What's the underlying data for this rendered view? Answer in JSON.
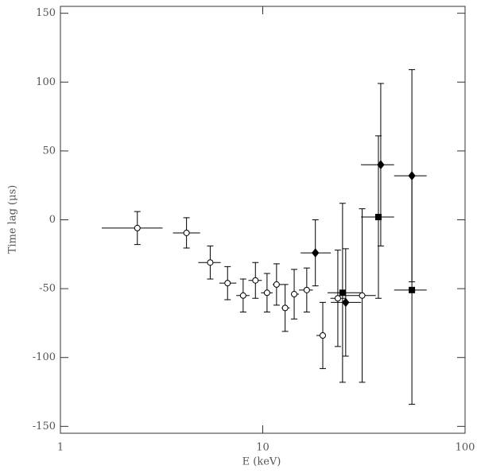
{
  "chart_data": {
    "type": "scatter",
    "xlabel": "E (keV)",
    "ylabel": "Time lag (μs)",
    "xlog": true,
    "xlim": [
      1,
      100
    ],
    "xticks": [
      1,
      10,
      100
    ],
    "ylim": [
      -155,
      155
    ],
    "yticks": [
      -150,
      -100,
      -50,
      0,
      50,
      100,
      150
    ],
    "series": [
      {
        "marker": "circle",
        "color": "#000000",
        "x": [
          2.4,
          4.2,
          5.5,
          6.7,
          8.0,
          9.2,
          10.5,
          11.7,
          12.9,
          14.3,
          16.5,
          19.8,
          23.5,
          31
        ],
        "xlo": [
          1.6,
          3.6,
          4.8,
          6.1,
          7.4,
          8.5,
          9.8,
          11.2,
          12.4,
          13.8,
          15.1,
          18.4,
          21.6,
          25.7
        ],
        "xhi": [
          3.2,
          4.9,
          6.2,
          7.4,
          8.6,
          9.9,
          11.2,
          12.5,
          13.6,
          15.1,
          17.7,
          20.3,
          25.8,
          36.2
        ],
        "values": [
          -6,
          -9.5,
          -31,
          -46,
          -55,
          -44,
          -53,
          -47,
          -64,
          -54,
          -51,
          -84,
          -57,
          -55
        ],
        "yerr": [
          12,
          11,
          12,
          12,
          12,
          13,
          14,
          15,
          17,
          18,
          16,
          24,
          35,
          63
        ]
      },
      {
        "marker": "diamond",
        "color": "#000000",
        "x": [
          18.2,
          25.7,
          38.3,
          54.6
        ],
        "xlo": [
          15.4,
          21.7,
          30.6,
          44.6
        ],
        "xhi": [
          21.7,
          30.6,
          44.6,
          64.6
        ],
        "values": [
          -24,
          -60,
          40,
          32
        ],
        "yerr": [
          24,
          39,
          59,
          77
        ]
      },
      {
        "marker": "square",
        "color": "#000000",
        "x": [
          24.8,
          37.3,
          54.6
        ],
        "xlo": [
          20.9,
          30.6,
          44.6
        ],
        "xhi": [
          30.6,
          44.6,
          64.6
        ],
        "values": [
          -53,
          2,
          -51
        ],
        "yerr": [
          65,
          59,
          83
        ]
      }
    ]
  }
}
